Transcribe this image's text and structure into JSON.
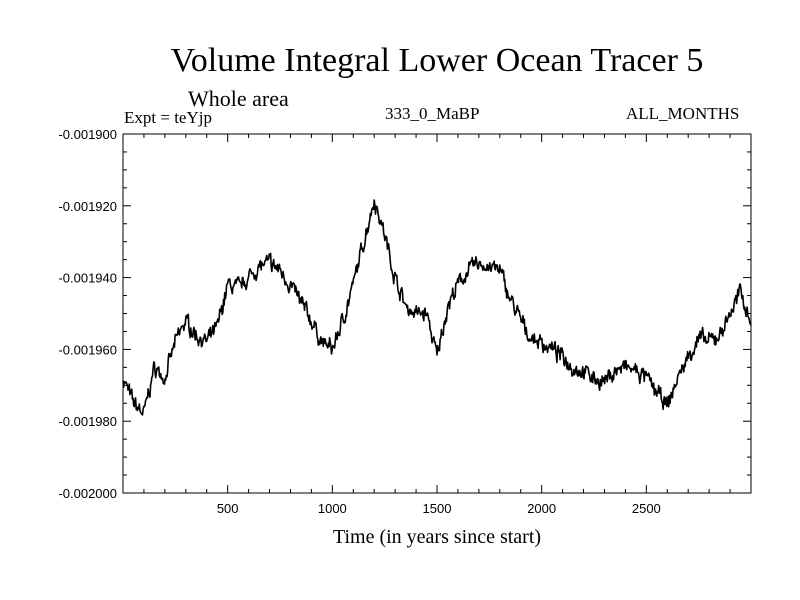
{
  "chart_data": {
    "type": "line",
    "title": "Volume Integral Lower Ocean Tracer 5",
    "subtitle": "Whole area",
    "experiment_label": "Expt = teYjp",
    "run_label": "333_0_MaBP",
    "months_label": "ALL_MONTHS",
    "xlabel": "Time (in years since start)",
    "ylabel": "",
    "xlim": [
      0,
      3000
    ],
    "ylim": [
      -0.002,
      -0.0019
    ],
    "xticks": [
      500,
      1000,
      1500,
      2000,
      2500
    ],
    "xtick_labels": [
      "500",
      "1000",
      "1500",
      "2000",
      "2500"
    ],
    "yticks": [
      -0.0019,
      -0.00192,
      -0.00194,
      -0.00196,
      -0.00198,
      -0.002
    ],
    "ytick_labels": [
      "-0.001900",
      "-0.001920",
      "-0.001940",
      "-0.001960",
      "-0.001980",
      "-0.002000"
    ],
    "grid": false,
    "line_color": "#000000",
    "series": [
      {
        "name": "Lower Ocean Tracer 5",
        "x": [
          0,
          50,
          100,
          150,
          200,
          250,
          300,
          350,
          400,
          450,
          500,
          550,
          600,
          650,
          700,
          750,
          800,
          850,
          900,
          950,
          1000,
          1050,
          1100,
          1150,
          1200,
          1250,
          1300,
          1350,
          1400,
          1450,
          1500,
          1550,
          1600,
          1650,
          1700,
          1750,
          1800,
          1850,
          1900,
          1950,
          2000,
          2050,
          2100,
          2150,
          2200,
          2250,
          2300,
          2350,
          2400,
          2450,
          2500,
          2550,
          2600,
          2650,
          2700,
          2750,
          2800,
          2850,
          2900,
          2950,
          3000
        ],
        "values": [
          -0.001968,
          -0.001975,
          -0.001978,
          -0.001965,
          -0.001968,
          -0.001958,
          -0.001952,
          -0.001956,
          -0.001958,
          -0.001954,
          -0.001942,
          -0.001943,
          -0.00194,
          -0.001937,
          -0.001936,
          -0.001938,
          -0.001942,
          -0.001947,
          -0.001952,
          -0.001958,
          -0.00196,
          -0.001952,
          -0.001942,
          -0.00193,
          -0.001918,
          -0.001928,
          -0.00194,
          -0.001948,
          -0.00195,
          -0.00195,
          -0.001962,
          -0.001948,
          -0.001942,
          -0.001938,
          -0.001936,
          -0.001937,
          -0.001938,
          -0.001946,
          -0.001952,
          -0.001957,
          -0.001958,
          -0.00196,
          -0.001962,
          -0.001965,
          -0.001966,
          -0.001968,
          -0.001969,
          -0.001966,
          -0.001965,
          -0.001966,
          -0.001968,
          -0.001972,
          -0.001976,
          -0.001968,
          -0.001962,
          -0.001957,
          -0.001958,
          -0.001956,
          -0.00195,
          -0.001944,
          -0.001952
        ]
      }
    ]
  }
}
